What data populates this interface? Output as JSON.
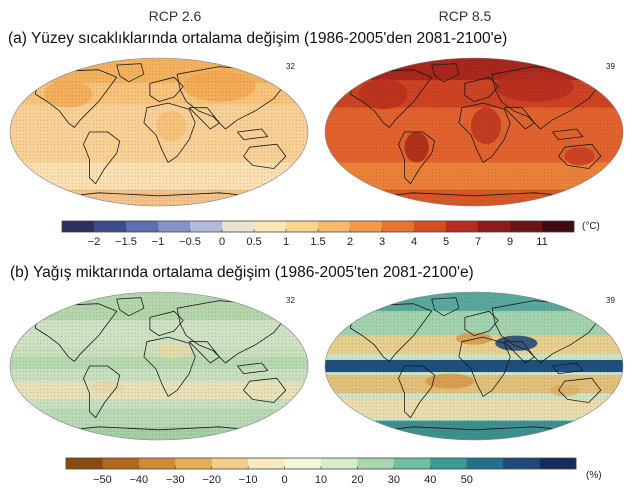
{
  "panel_a": {
    "scenario_left": "RCP 2.6",
    "scenario_right": "RCP 8.5",
    "title": "(a) Yüzey sıcaklıklarında ortalama değişim (1986-2005'den 2081-2100'e)",
    "model_count_left": "32",
    "model_count_right": "39",
    "unit": "(°C)",
    "ticks": [
      "−2",
      "−1.5",
      "−1",
      "−0.5",
      "0",
      "0.5",
      "1",
      "1.5",
      "2",
      "3",
      "4",
      "5",
      "7",
      "9",
      "11"
    ],
    "colorbar_colors": [
      "#2b2e5e",
      "#3d4a8c",
      "#5d6fb0",
      "#8592c7",
      "#b3bbdd",
      "#e8e4cf",
      "#fae7b5",
      "#fbd58e",
      "#f8ba6a",
      "#f39a48",
      "#e8732e",
      "#d84e23",
      "#b52d1d",
      "#8c1a17",
      "#6a1318",
      "#3f0b12"
    ],
    "colors": {
      "left_map_base": "#f7c680",
      "right_map_base": "#dd5a2a"
    }
  },
  "panel_b": {
    "title": "(b) Yağış miktarında ortalama değişim (1986-2005'ten 2081-2100'e)",
    "model_count_left": "32",
    "model_count_right": "39",
    "unit": "(%)",
    "ticks": [
      "−50",
      "−40",
      "−30",
      "−20",
      "−10",
      "0",
      "10",
      "20",
      "30",
      "40",
      "50"
    ],
    "colorbar_colors": [
      "#8a4b12",
      "#b2681f",
      "#d18a36",
      "#e6ad5a",
      "#f3cf8c",
      "#f8e9c0",
      "#f5f5dc",
      "#d6eccc",
      "#a9d7b0",
      "#6fbfa3",
      "#3c9c93",
      "#23718a",
      "#1d4a7a",
      "#182c5c"
    ],
    "colors": {
      "left_map_base": "#c8e0bf",
      "right_map_base": "#cde5c4"
    }
  }
}
